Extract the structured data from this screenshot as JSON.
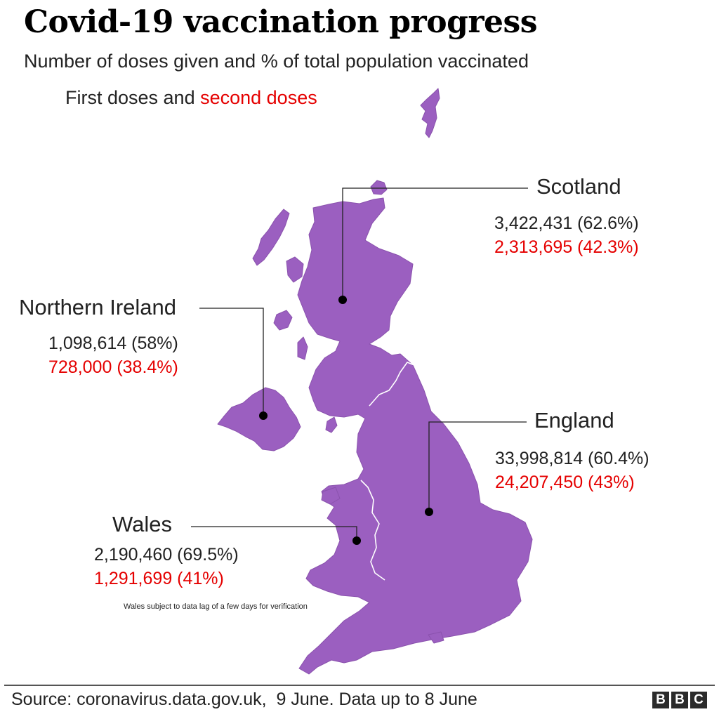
{
  "title": "Covid-19 vaccination progress",
  "subtitle": "Number of doses given and % of total population vaccinated",
  "legend": {
    "first_label": "First doses and ",
    "second_label": "second doses"
  },
  "colors": {
    "land": "#9b5fc0",
    "first": "#222222",
    "second": "#e50000",
    "leader": "#222222"
  },
  "regions": {
    "scotland": {
      "name": "Scotland",
      "first": "3,422,431 (62.6%)",
      "second": "2,313,695 (42.3%)"
    },
    "northern_ireland": {
      "name": "Northern Ireland",
      "first": "1,098,614 (58%)",
      "second": "728,000 (38.4%)"
    },
    "england": {
      "name": "England",
      "first": "33,998,814 (60.4%)",
      "second": "24,207,450 (43%)"
    },
    "wales": {
      "name": "Wales",
      "first": "2,190,460 (69.5%)",
      "second": "1,291,699 (41%)"
    }
  },
  "note": "Wales subject to data lag of a few days for verification",
  "footer": {
    "source": "Source: coronavirus.data.gov.uk,  9 June. Data up to 8 June",
    "logo": [
      "B",
      "B",
      "C"
    ]
  }
}
